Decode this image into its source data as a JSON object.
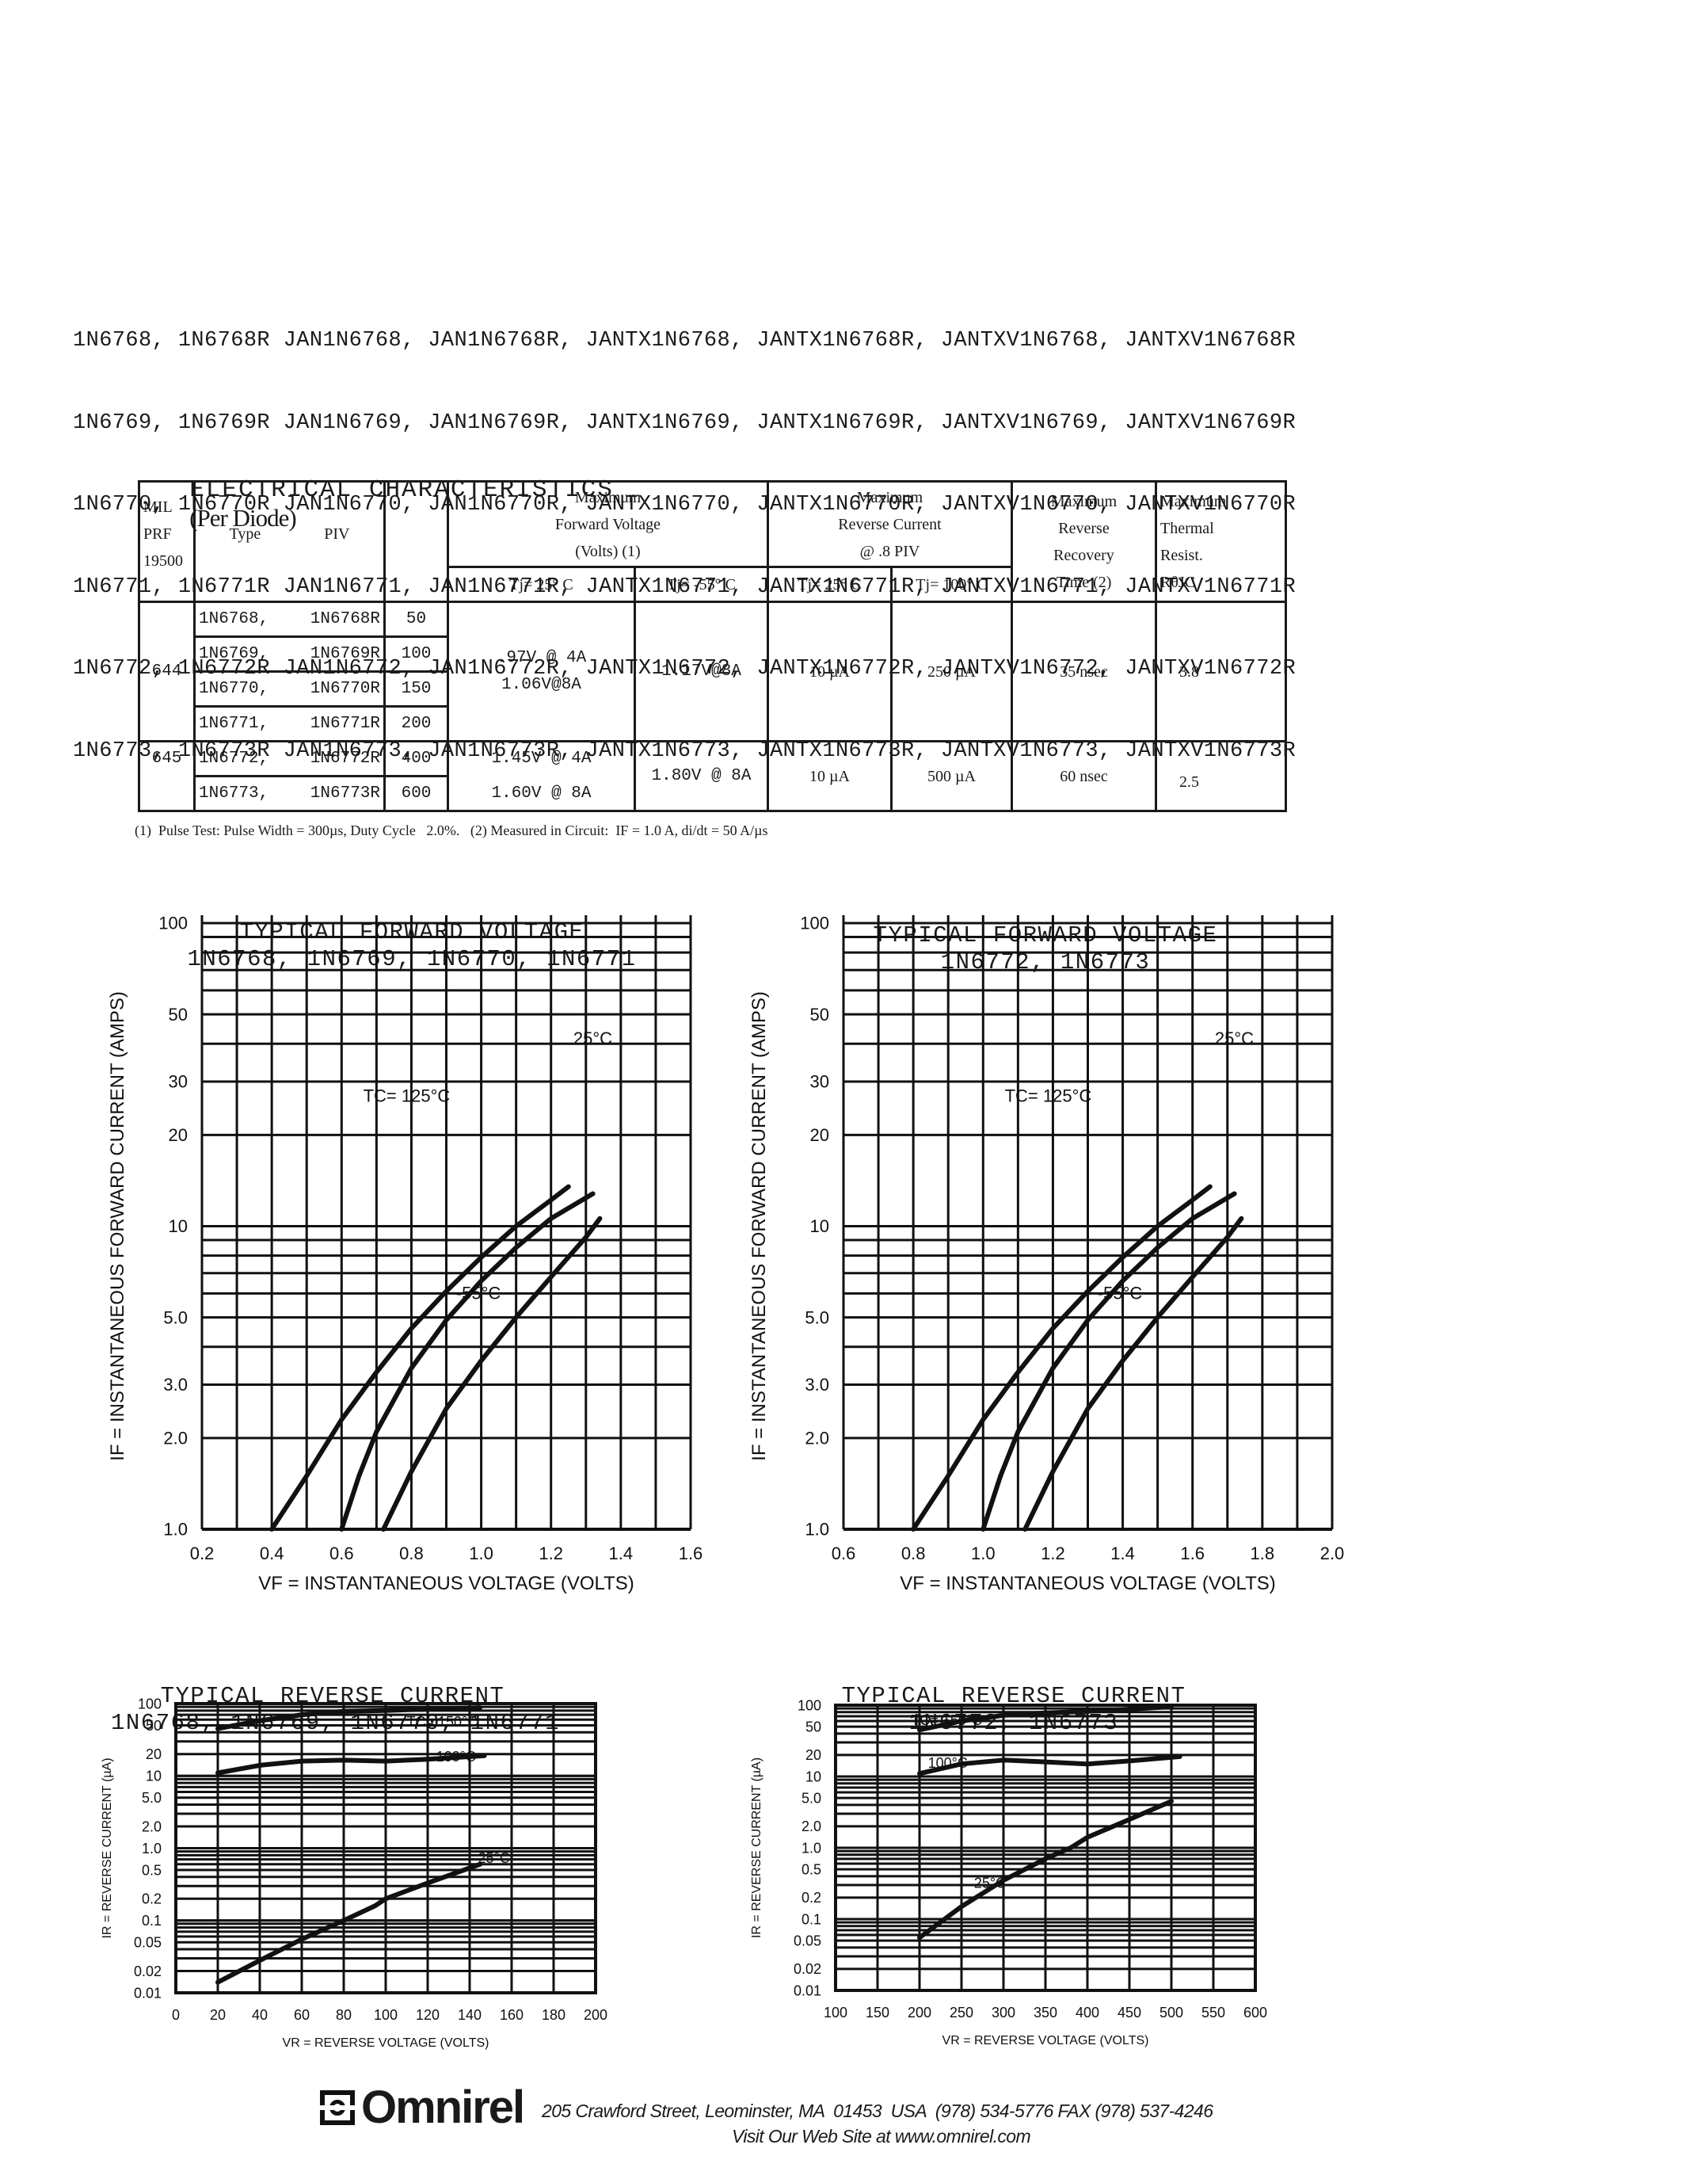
{
  "part_numbers": [
    "1N6768, 1N6768R JAN1N6768, JAN1N6768R, JANTX1N6768, JANTX1N6768R, JANTXV1N6768, JANTXV1N6768R",
    "1N6769, 1N6769R JAN1N6769, JAN1N6769R, JANTX1N6769, JANTX1N6769R, JANTXV1N6769, JANTXV1N6769R",
    "1N6770, 1N6770R JAN1N6770, JAN1N6770R, JANTX1N6770, JANTX1N6770R, JANTXV1N6770, JANTXV1N6770R",
    "1N6771, 1N6771R JAN1N6771, JAN1N6771R, JANTX1N6771, JANTX1N6771R, JANTXV1N6771, JANTXV1N6771R",
    "1N6772, 1N6772R JAN1N6772, JAN1N6772R, JANTX1N6772, JANTX1N6772R, JANTXV1N6772, JANTXV1N6772R",
    "1N6773, 1N6773R JAN1N6773, JAN1N6773R, JANTX1N6773, JANTX1N6773R, JANTXV1N6773, JANTXV1N6773R"
  ],
  "electrical": {
    "title": "ELECTRICAL CHARACTERISTICS",
    "title_suffix": "(Per Diode)",
    "headers": {
      "mil": [
        "MIL",
        "PRF",
        "19500"
      ],
      "type": "Type",
      "piv": "PIV",
      "vf": [
        "Maximum",
        "Forward Voltage",
        "(Volts)  (1)"
      ],
      "vf_25": "Tj= 25° C",
      "vf_m55": "Tj= -55° C",
      "ir": [
        "Maximum",
        "Reverse Current",
        "@ .8 PIV"
      ],
      "ir_25": "Tj= 25° C",
      "ir_100": "Tj= 100° C",
      "trr": [
        "Maximum",
        "Reverse",
        "Recovery",
        "Time (2)"
      ],
      "rth": [
        "Maximum",
        "Thermal",
        "Resist.",
        "RθJC"
      ]
    },
    "groups": [
      {
        "mil": "644",
        "rows": [
          {
            "type": "1N6768,",
            "type_r": "1N6768R",
            "piv": "50"
          },
          {
            "type": "1N6769,",
            "type_r": "1N6769R",
            "piv": "100"
          },
          {
            "type": "1N6770,",
            "type_r": "1N6770R",
            "piv": "150"
          },
          {
            "type": "1N6771,",
            "type_r": "1N6771R",
            "piv": "200"
          }
        ],
        "vf_25": [
          ".97V @ 4A",
          "1.06V@8A"
        ],
        "vf_m55": "1.17V@8A",
        "ir_25": "10 µA",
        "ir_100": "250 µA",
        "trr": "35 nsec",
        "rth": "3.8"
      },
      {
        "mil": "645",
        "rows": [
          {
            "type": "1N6772,",
            "type_r": "1N6772R",
            "piv": "400"
          },
          {
            "type": "1N6773,",
            "type_r": "1N6773R",
            "piv": "600"
          }
        ],
        "vf_25": [
          "1.45V @ 4A",
          "1.60V @ 8A"
        ],
        "vf_m55": "1.80V @ 8A",
        "ir_25": "10 µA",
        "ir_100": "500 µA",
        "trr": "60 nsec",
        "rth": "2.5"
      }
    ],
    "footnote": "(1)  Pulse Test: Pulse Width = 300µs, Duty Cycle   2.0%.   (2) Measured in Circuit:  IF = 1.0 A, di/dt = 50 A/µs"
  },
  "chart_data": [
    {
      "type": "line",
      "title": "TYPICAL FORWARD VOLTAGE",
      "subtitle": "1N6768, 1N6769, 1N6770, 1N6771",
      "xlabel": "VF = INSTANTANEOUS VOLTAGE (VOLTS)",
      "ylabel": "IF = INSTANTANEOUS FORWARD CURRENT (AMPS)",
      "xlim": [
        0.2,
        1.6
      ],
      "ylim": [
        1.0,
        100
      ],
      "yscale": "log",
      "grid": true,
      "x_ticks": [
        "0.2",
        "0.4",
        "0.6",
        "0.8",
        "1.0",
        "1.2",
        "1.4",
        "1.6"
      ],
      "y_ticks": [
        "1.0",
        "2.0",
        "3.0",
        "5.0",
        "10",
        "20",
        "30",
        "50",
        "100"
      ],
      "annotations": [
        "TC= 125°C",
        "25°C",
        "-55°C"
      ],
      "series": [
        {
          "name": "TC= 125°C",
          "x": [
            0.4,
            0.5,
            0.6,
            0.7,
            0.8,
            0.9,
            1.0,
            1.1,
            1.2,
            1.25
          ],
          "y": [
            1.0,
            1.5,
            2.3,
            3.3,
            4.6,
            6.1,
            7.9,
            10.0,
            12.2,
            13.5
          ]
        },
        {
          "name": "25°C",
          "x": [
            0.6,
            0.65,
            0.7,
            0.8,
            0.9,
            1.0,
            1.1,
            1.2,
            1.32
          ],
          "y": [
            1.0,
            1.5,
            2.1,
            3.4,
            4.9,
            6.6,
            8.5,
            10.6,
            12.8
          ]
        },
        {
          "name": "-55°C",
          "x": [
            0.72,
            0.8,
            0.9,
            1.0,
            1.1,
            1.2,
            1.3,
            1.34
          ],
          "y": [
            1.0,
            1.55,
            2.5,
            3.6,
            5.0,
            6.8,
            9.2,
            10.6
          ]
        }
      ]
    },
    {
      "type": "line",
      "title": "TYPICAL FORWARD VOLTAGE",
      "subtitle": "1N6772, 1N6773",
      "xlabel": "VF = INSTANTANEOUS VOLTAGE (VOLTS)",
      "ylabel": "IF = INSTANTANEOUS FORWARD CURRENT (AMPS)",
      "xlim": [
        0.6,
        2.0
      ],
      "ylim": [
        1.0,
        100
      ],
      "yscale": "log",
      "grid": true,
      "x_ticks": [
        "0.6",
        "0.8",
        "1.0",
        "1.2",
        "1.4",
        "1.6",
        "1.8",
        "2.0"
      ],
      "y_ticks": [
        "1.0",
        "2.0",
        "3.0",
        "5.0",
        "10",
        "20",
        "30",
        "50",
        "100"
      ],
      "annotations": [
        "TC= 125°C",
        "25°C",
        "-55°C"
      ],
      "series": [
        {
          "name": "TC= 125°C",
          "x": [
            0.8,
            0.9,
            1.0,
            1.1,
            1.2,
            1.3,
            1.4,
            1.5,
            1.6,
            1.65
          ],
          "y": [
            1.0,
            1.5,
            2.3,
            3.3,
            4.6,
            6.1,
            7.9,
            10.0,
            12.2,
            13.5
          ]
        },
        {
          "name": "25°C",
          "x": [
            1.0,
            1.05,
            1.1,
            1.2,
            1.3,
            1.4,
            1.5,
            1.6,
            1.72
          ],
          "y": [
            1.0,
            1.5,
            2.1,
            3.4,
            4.9,
            6.6,
            8.5,
            10.6,
            12.8
          ]
        },
        {
          "name": "-55°C",
          "x": [
            1.12,
            1.2,
            1.3,
            1.4,
            1.5,
            1.6,
            1.7,
            1.74
          ],
          "y": [
            1.0,
            1.55,
            2.5,
            3.6,
            5.0,
            6.8,
            9.2,
            10.6
          ]
        }
      ]
    },
    {
      "type": "line",
      "title": "TYPICAL REVERSE CURRENT",
      "subtitle": "1N6768, 1N6769, 1N6770, 1N6771",
      "xlabel": "VR = REVERSE VOLTAGE (VOLTS)",
      "ylabel": "IR = REVERSE CURRENT (µA)",
      "xlim": [
        0,
        200
      ],
      "ylim": [
        0.01,
        100
      ],
      "yscale": "log",
      "grid": true,
      "x_ticks": [
        "0",
        "20",
        "40",
        "60",
        "80",
        "100",
        "120",
        "140",
        "160",
        "180",
        "200"
      ],
      "y_ticks": [
        "0.01",
        "0.02",
        "0.05",
        "0.1",
        "0.2",
        "0.5",
        "1.0",
        "2.0",
        "5.0",
        "10",
        "20",
        "50",
        "100"
      ],
      "annotations": [
        "TC= 150°C",
        "100°C",
        "25°C"
      ],
      "series": [
        {
          "name": "TC= 150°C",
          "x": [
            20,
            40,
            60,
            80,
            100,
            120,
            145
          ],
          "y": [
            45,
            58,
            70,
            78,
            80,
            84,
            88
          ]
        },
        {
          "name": "100°C",
          "x": [
            20,
            40,
            60,
            80,
            100,
            120,
            147
          ],
          "y": [
            11,
            14,
            16,
            16.5,
            16,
            17,
            19
          ]
        },
        {
          "name": "25°C",
          "x": [
            20,
            40,
            60,
            80,
            95,
            100,
            120,
            145
          ],
          "y": [
            0.014,
            0.028,
            0.055,
            0.1,
            0.16,
            0.2,
            0.33,
            0.6
          ]
        }
      ]
    },
    {
      "type": "line",
      "title": "TYPICAL REVERSE CURRENT",
      "subtitle": "1N6772, 1N6773",
      "xlabel": "VR = REVERSE VOLTAGE (VOLTS)",
      "ylabel": "IR = REVERSE CURRENT (µA)",
      "xlim": [
        100,
        600
      ],
      "ylim": [
        0.01,
        100
      ],
      "yscale": "log",
      "grid": true,
      "x_ticks": [
        "100",
        "150",
        "200",
        "250",
        "300",
        "350",
        "400",
        "450",
        "500",
        "550",
        "600"
      ],
      "y_ticks": [
        "0.01",
        "0.02",
        "0.05",
        "0.1",
        "0.2",
        "0.5",
        "1.0",
        "2.0",
        "5.0",
        "10",
        "20",
        "50",
        "100"
      ],
      "annotations": [
        "TC= 150°C",
        "100°C",
        "25°C"
      ],
      "series": [
        {
          "name": "TC= 150°C",
          "x": [
            200,
            250,
            300,
            350,
            400,
            450,
            500
          ],
          "y": [
            45,
            60,
            72,
            78,
            82,
            88,
            95
          ]
        },
        {
          "name": "100°C",
          "x": [
            200,
            250,
            300,
            350,
            400,
            450,
            510
          ],
          "y": [
            11,
            15,
            17,
            16,
            15,
            16.5,
            19
          ]
        },
        {
          "name": "25°C",
          "x": [
            200,
            250,
            300,
            350,
            380,
            400,
            450,
            500
          ],
          "y": [
            0.055,
            0.15,
            0.35,
            0.7,
            1.0,
            1.4,
            2.5,
            4.5
          ]
        }
      ]
    }
  ],
  "footer": {
    "company": "Omnirel",
    "address": "205 Crawford Street, Leominster, MA  01453  USA  (978) 534-5776 FAX (978) 537-4246",
    "website": "Visit Our Web Site at www.omnirel.com"
  }
}
